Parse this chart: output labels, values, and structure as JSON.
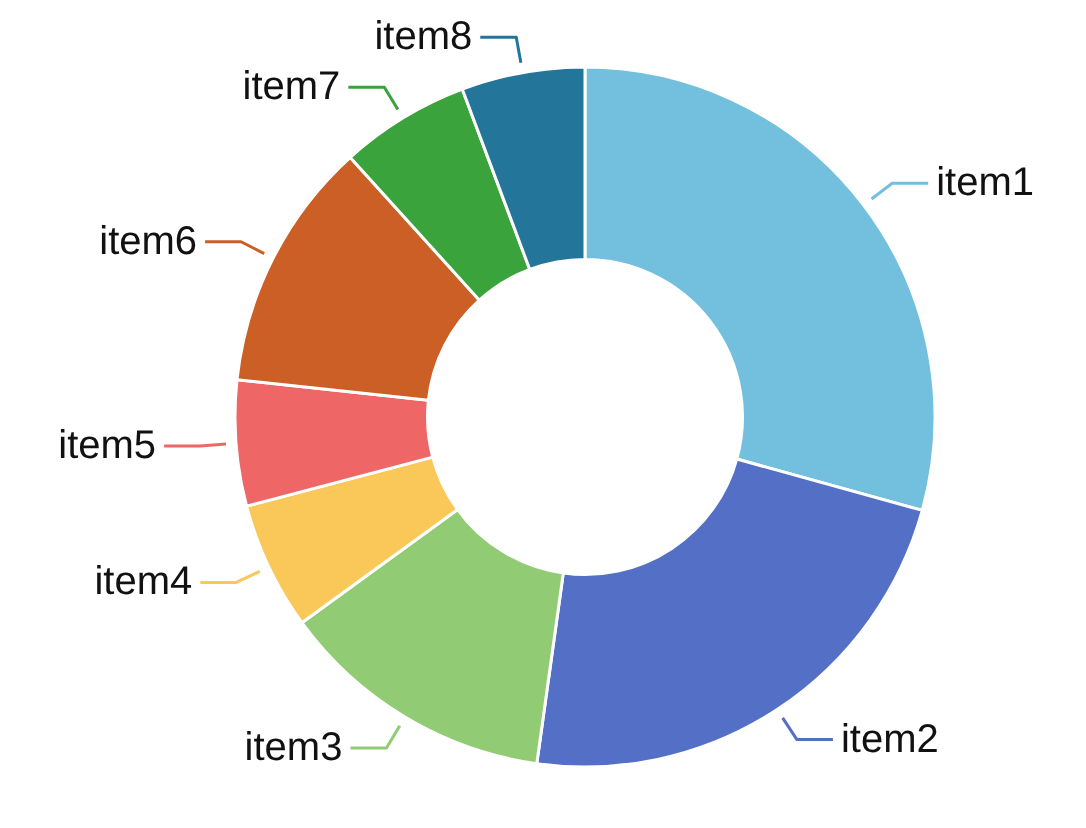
{
  "chart_data": {
    "type": "donut",
    "categories": [
      "item1",
      "item2",
      "item3",
      "item4",
      "item5",
      "item6",
      "item7",
      "item8"
    ],
    "values": [
      29.3,
      22.9,
      12.8,
      5.9,
      5.8,
      11.6,
      6.0,
      5.7
    ],
    "colors": [
      "#73c0de",
      "#5470c6",
      "#91cc75",
      "#fac858",
      "#ee6666",
      "#cb5f25",
      "#3ba33b",
      "#23759a"
    ]
  }
}
